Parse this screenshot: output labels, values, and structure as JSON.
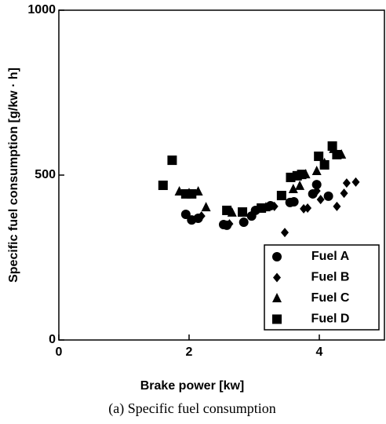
{
  "chart_data": {
    "type": "scatter",
    "xlabel": "Brake power [kw]",
    "ylabel": "Specific fuel consumption [g/kw · h]",
    "caption": "(a) Specific fuel consumption",
    "xlim": [
      0,
      5
    ],
    "xticks": [
      0,
      2,
      4
    ],
    "ylim": [
      0,
      1000
    ],
    "yticks": [
      0,
      500,
      1000
    ],
    "legend": "lower right",
    "series": [
      {
        "name": "Fuel A",
        "color": "#000000",
        "marker": "circle",
        "x": [
          1.95,
          2.04,
          2.14,
          2.53,
          2.58,
          2.84,
          2.96,
          3.02,
          3.25,
          3.55,
          3.61,
          3.9,
          3.96,
          4.14
        ],
        "values": [
          381,
          364,
          369,
          350,
          348,
          357,
          376,
          393,
          407,
          417,
          419,
          443,
          471,
          436
        ]
      },
      {
        "name": "Fuel B",
        "color": "#000000",
        "marker": "diamond",
        "x": [
          2.19,
          2.62,
          3.31,
          3.47,
          3.76,
          3.82,
          3.96,
          4.02,
          4.27,
          4.38,
          4.42,
          4.56
        ],
        "values": [
          376,
          352,
          405,
          326,
          398,
          400,
          452,
          426,
          405,
          445,
          476,
          479
        ]
      },
      {
        "name": "Fuel C",
        "color": "#000000",
        "marker": "triangle",
        "x": [
          1.85,
          2.0,
          2.14,
          2.26,
          2.66,
          3.18,
          3.6,
          3.7,
          3.79,
          3.96,
          4.08,
          4.22,
          4.34
        ],
        "values": [
          450,
          445,
          450,
          402,
          386,
          402,
          457,
          467,
          502,
          512,
          536,
          579,
          562
        ]
      },
      {
        "name": "Fuel D",
        "color": "#000000",
        "marker": "square",
        "x": [
          1.6,
          1.74,
          1.95,
          2.04,
          2.58,
          2.82,
          3.11,
          3.42,
          3.56,
          3.66,
          3.73,
          3.99,
          4.08,
          4.2,
          4.27
        ],
        "values": [
          469,
          545,
          443,
          443,
          393,
          388,
          400,
          438,
          493,
          498,
          502,
          557,
          531,
          588,
          562
        ]
      }
    ]
  }
}
